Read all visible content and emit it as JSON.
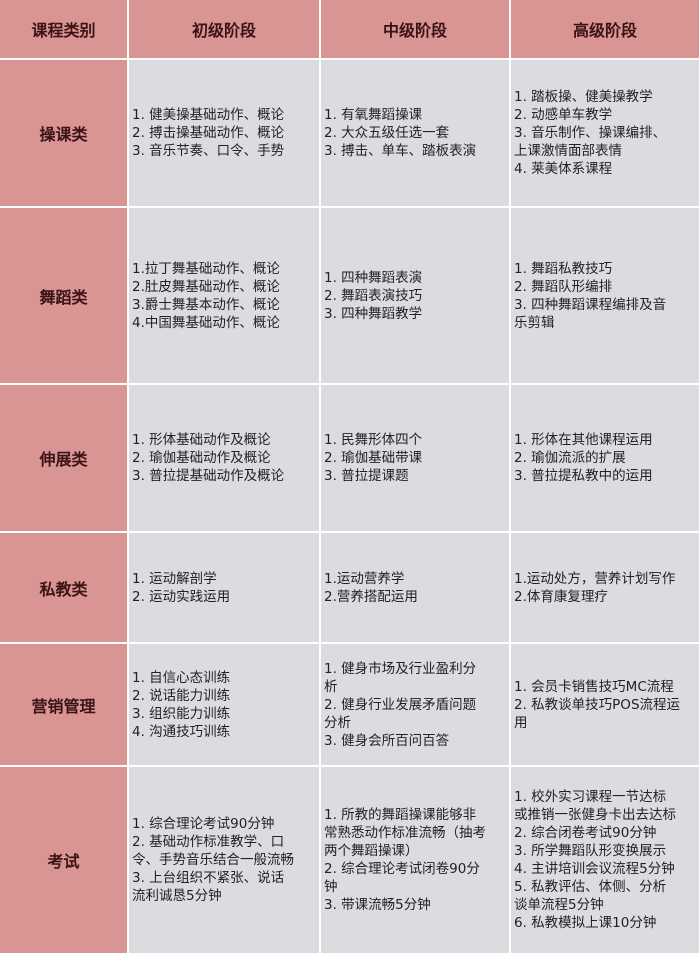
{
  "header": [
    "课程类别",
    "初级阶段",
    "中级阶段",
    "高级阶段"
  ],
  "rows": [
    {
      "category": "操课类",
      "cells": [
        [
          "1.  健美操基础动作、概论",
          "2.  搏击操基础动作、概论",
          "3.  音乐节奏、口令、手势"
        ],
        [
          "1.  有氧舞蹈操课",
          "2.  大众五级任选一套",
          "3.  搏击、单车、踏板表演"
        ],
        [
          "1.  踏板操、健美操教学",
          "2.  动感单车教学",
          "3.  音乐制作、操课编排、",
          "上课激情面部表情",
          "4.  莱美体系课程"
        ]
      ]
    },
    {
      "category": "舞蹈类",
      "cells": [
        [
          "1.拉丁舞基础动作、概论",
          "2.肚皮舞基础动作、概论",
          "3.爵士舞基本动作、概论",
          "4.中国舞基础动作、概论"
        ],
        [
          "1.  四种舞蹈表演",
          "2.  舞蹈表演技巧",
          "3.  四种舞蹈教学"
        ],
        [
          "1.  舞蹈私教技巧",
          "2.  舞蹈队形编排",
          "3.  四种舞蹈课程编排及音",
          "乐剪辑"
        ]
      ]
    },
    {
      "category": "伸展类",
      "cells": [
        [
          "1.  形体基础动作及概论",
          "2.  瑜伽基础动作及概论",
          "3.  普拉提基础动作及概论"
        ],
        [
          "1.  民舞形体四个",
          "2.  瑜伽基础带课",
          "3.  普拉提课题"
        ],
        [
          "1.  形体在其他课程运用",
          "2.  瑜伽流派的扩展",
          "3.  普拉提私教中的运用"
        ]
      ]
    },
    {
      "category": "私教类",
      "cells": [
        [
          "1.  运动解剖学",
          "2.  运动实践运用"
        ],
        [
          "1.运动营养学",
          "2.营养搭配运用"
        ],
        [
          "1.运动处方，营养计划写作",
          "2.体育康复理疗"
        ]
      ]
    },
    {
      "category": "营销管理",
      "cells": [
        [
          "1.  自信心态训练",
          "2.  说话能力训练",
          "3.  组织能力训练",
          "4.  沟通技巧训练"
        ],
        [
          "1.  健身市场及行业盈利分",
          "析",
          "2.  健身行业发展矛盾问题",
          "分析",
          "3.  健身会所百问百答"
        ],
        [
          "1.  会员卡销售技巧MC流程",
          "2.  私教谈单技巧POS流程运",
          "用"
        ]
      ]
    },
    {
      "category": "考试",
      "cells": [
        [
          "1.  综合理论考试90分钟",
          "2.  基础动作标准教学、口",
          "令、手势音乐结合一般流畅",
          "3.  上台组织不紧张、说话",
          "流利诚恳5分钟"
        ],
        [
          "1.  所教的舞蹈操课能够非",
          "常熟悉动作标准流畅（抽考",
          "两个舞蹈操课）",
          "2.  综合理论考试闭卷90分",
          "钟",
          "3.  带课流畅5分钟"
        ],
        [
          "1.  校外实习课程一节达标",
          "或推销一张健身卡出去达标",
          "2.  综合闭卷考试90分钟",
          "3.  所学舞蹈队形变换展示",
          "4.  主讲培训会议流程5分钟",
          "5.  私教评估、体侧、分析",
          "谈单流程5分钟",
          "6.  私教模拟上课10分钟"
        ]
      ]
    }
  ],
  "colors": {
    "header_bg": "#d99594",
    "cell_bg": "#dcdbe0",
    "border": "#ffffff"
  }
}
